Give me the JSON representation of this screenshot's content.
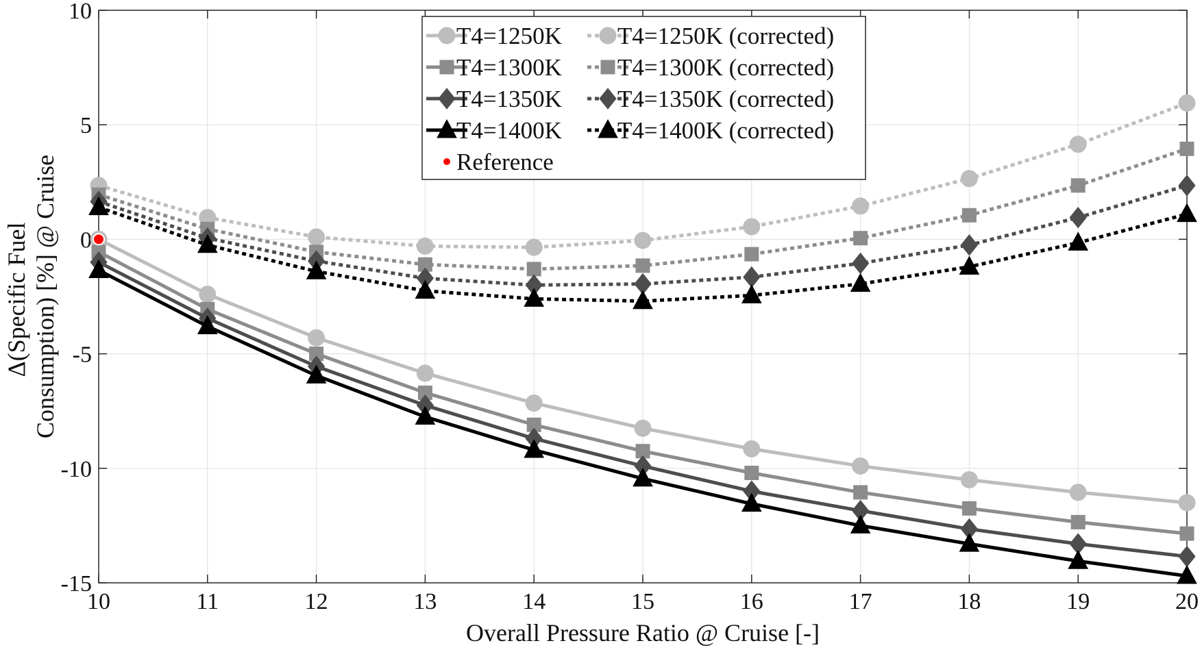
{
  "chart_data": {
    "type": "line",
    "title": "",
    "xlabel": "Overall Pressure Ratio @ Cruise [-]",
    "ylabel_lines": [
      "Δ(Specific Fuel",
      "Consumption) [%] @ Cruise"
    ],
    "xlim": [
      10,
      20
    ],
    "ylim": [
      -15,
      10
    ],
    "x_ticks": [
      10,
      11,
      12,
      13,
      14,
      15,
      16,
      17,
      18,
      19,
      20
    ],
    "y_ticks": [
      -15,
      -10,
      -5,
      0,
      5,
      10
    ],
    "grid": true,
    "legend_position": "top-center",
    "x": [
      10,
      11,
      12,
      13,
      14,
      15,
      16,
      17,
      18,
      19,
      20
    ],
    "series": [
      {
        "name": "T4=1250K",
        "color": "#bdbdbd",
        "marker": "circle",
        "dash": "solid",
        "values": [
          0.0,
          -2.4,
          -4.3,
          -5.85,
          -7.15,
          -8.25,
          -9.15,
          -9.9,
          -10.5,
          -11.05,
          -11.5
        ]
      },
      {
        "name": "T4=1300K",
        "color": "#8c8c8c",
        "marker": "square",
        "dash": "solid",
        "values": [
          -0.55,
          -3.05,
          -5.0,
          -6.7,
          -8.1,
          -9.25,
          -10.2,
          -11.05,
          -11.75,
          -12.35,
          -12.85
        ]
      },
      {
        "name": "T4=1350K",
        "color": "#4d4d4d",
        "marker": "diamond",
        "dash": "solid",
        "values": [
          -1.0,
          -3.45,
          -5.55,
          -7.25,
          -8.7,
          -9.9,
          -11.0,
          -11.85,
          -12.65,
          -13.3,
          -13.85
        ]
      },
      {
        "name": "T4=1400K",
        "color": "#000000",
        "marker": "triangle",
        "dash": "solid",
        "values": [
          -1.35,
          -3.8,
          -5.95,
          -7.75,
          -9.2,
          -10.45,
          -11.55,
          -12.5,
          -13.3,
          -14.05,
          -14.7
        ]
      },
      {
        "name": "T4=1250K (corrected)",
        "color": "#bdbdbd",
        "marker": "circle",
        "dash": "dotted",
        "values": [
          2.35,
          0.95,
          0.1,
          -0.3,
          -0.35,
          -0.05,
          0.55,
          1.45,
          2.65,
          4.15,
          5.95
        ]
      },
      {
        "name": "T4=1300K (corrected)",
        "color": "#8c8c8c",
        "marker": "square",
        "dash": "dotted",
        "values": [
          1.95,
          0.45,
          -0.55,
          -1.1,
          -1.3,
          -1.15,
          -0.65,
          0.05,
          1.05,
          2.35,
          3.95
        ]
      },
      {
        "name": "T4=1350K (corrected)",
        "color": "#4d4d4d",
        "marker": "diamond",
        "dash": "dotted",
        "values": [
          1.65,
          0.05,
          -0.95,
          -1.7,
          -2.0,
          -1.95,
          -1.65,
          -1.05,
          -0.25,
          0.95,
          2.35
        ]
      },
      {
        "name": "T4=1400K (corrected)",
        "color": "#000000",
        "marker": "triangle",
        "dash": "dotted",
        "values": [
          1.4,
          -0.25,
          -1.4,
          -2.25,
          -2.6,
          -2.7,
          -2.45,
          -1.95,
          -1.2,
          -0.15,
          1.1
        ]
      }
    ],
    "reference": {
      "name": "Reference",
      "x": 10,
      "y": 0,
      "color": "#ff0000"
    }
  }
}
